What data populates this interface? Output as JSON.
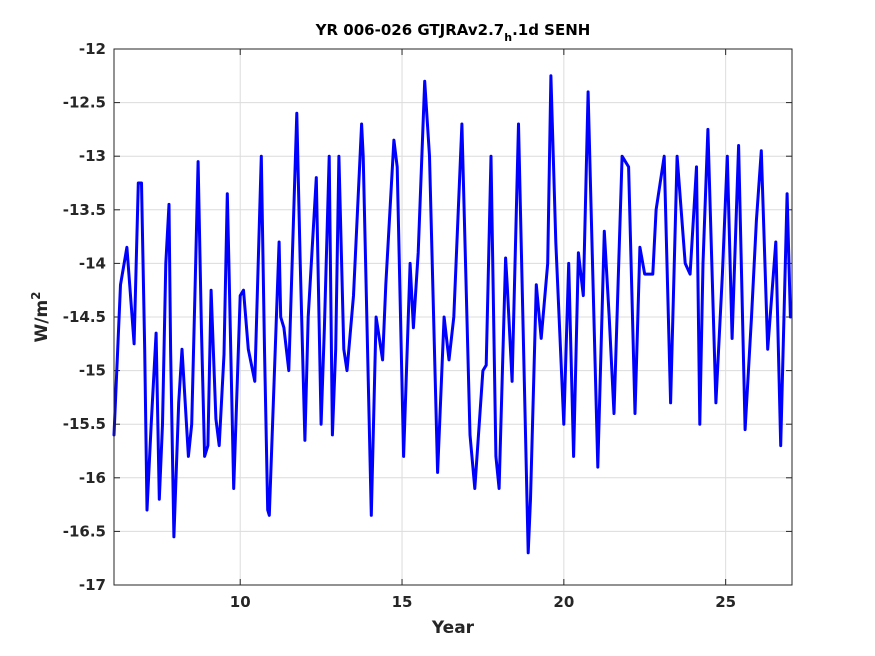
{
  "chart_data": {
    "type": "line",
    "title": {
      "main": "YR 006-026 GTJRAv2.7",
      "subscript": "h",
      "suffix": ".1d SENH"
    },
    "xlabel": "Year",
    "ylabel": {
      "base": "W/m",
      "superscript": "2"
    },
    "xlim": [
      6.1,
      27.05
    ],
    "ylim": [
      -17,
      -12
    ],
    "xticks": [
      10,
      15,
      20,
      25
    ],
    "yticks": [
      -12,
      -12.5,
      -13,
      -13.5,
      -14,
      -14.5,
      -15,
      -15.5,
      -16,
      -16.5,
      -17
    ],
    "xtick_labels": [
      "10",
      "15",
      "20",
      "25"
    ],
    "ytick_labels": [
      "-12",
      "-12.5",
      "-13",
      "-13.5",
      "-14",
      "-14.5",
      "-15",
      "-15.5",
      "-16",
      "-16.5",
      "-17"
    ],
    "grid": true,
    "line_color": "#0000ff",
    "series": [
      {
        "x": [
          6.1,
          6.3,
          6.5,
          6.72,
          6.85,
          6.95,
          7.05,
          7.12,
          7.25,
          7.4,
          7.5,
          7.6,
          7.7,
          7.8,
          7.85,
          7.95,
          8.1,
          8.2,
          8.4,
          8.5,
          8.6,
          8.7,
          8.8,
          8.9,
          9.0,
          9.1,
          9.25,
          9.35,
          9.5,
          9.6,
          9.65,
          9.8,
          10.0,
          10.1,
          10.25,
          10.45,
          10.65,
          10.75,
          10.85,
          10.9,
          11.2,
          11.25,
          11.35,
          11.5,
          11.75,
          11.85,
          12.0,
          12.1,
          12.35,
          12.5,
          12.6,
          12.75,
          12.85,
          12.95,
          13.05,
          13.2,
          13.3,
          13.5,
          13.75,
          13.8,
          14.05,
          14.2,
          14.4,
          14.5,
          14.75,
          14.85,
          15.05,
          15.25,
          15.35,
          15.5,
          15.7,
          15.85,
          16.1,
          16.3,
          16.45,
          16.6,
          16.85,
          17.1,
          17.25,
          17.5,
          17.6,
          17.75,
          17.9,
          18.0,
          18.2,
          18.25,
          18.4,
          18.6,
          18.9,
          18.97,
          19.15,
          19.3,
          19.5,
          19.6,
          19.75,
          20.0,
          20.15,
          20.3,
          20.45,
          20.6,
          20.75,
          20.85,
          21.05,
          21.25,
          21.4,
          21.55,
          21.8,
          22.0,
          22.2,
          22.35,
          22.5,
          22.75,
          22.85,
          23.1,
          23.3,
          23.5,
          23.75,
          23.9,
          24.1,
          24.2,
          24.3,
          24.45,
          24.7,
          24.9,
          25.05,
          25.2,
          25.4,
          25.6,
          25.8,
          25.95,
          26.1,
          26.3,
          26.55,
          26.7,
          26.9,
          27.0
        ],
        "y": [
          -15.6,
          -14.2,
          -13.85,
          -14.75,
          -13.25,
          -13.25,
          -14.8,
          -16.3,
          -15.5,
          -14.65,
          -16.2,
          -15.5,
          -14.0,
          -13.45,
          -14.8,
          -16.55,
          -15.3,
          -14.8,
          -15.8,
          -15.5,
          -14.3,
          -13.05,
          -14.6,
          -15.8,
          -15.7,
          -14.25,
          -15.45,
          -15.7,
          -14.85,
          -13.35,
          -14.0,
          -16.1,
          -14.3,
          -14.25,
          -14.8,
          -15.1,
          -13.0,
          -14.8,
          -16.3,
          -16.35,
          -13.8,
          -14.5,
          -14.6,
          -15.0,
          -12.6,
          -13.95,
          -15.65,
          -14.5,
          -13.2,
          -15.5,
          -14.6,
          -13.0,
          -15.6,
          -14.8,
          -13.0,
          -14.8,
          -15.0,
          -14.3,
          -12.7,
          -13.0,
          -16.35,
          -14.5,
          -14.9,
          -14.2,
          -12.85,
          -13.1,
          -15.8,
          -14.0,
          -14.6,
          -13.9,
          -12.3,
          -13.0,
          -15.95,
          -14.5,
          -14.9,
          -14.5,
          -12.7,
          -15.6,
          -16.1,
          -15.0,
          -14.95,
          -13.0,
          -15.8,
          -16.1,
          -13.95,
          -14.2,
          -15.1,
          -12.7,
          -16.7,
          -16.2,
          -14.2,
          -14.7,
          -14.0,
          -12.25,
          -13.8,
          -15.5,
          -14.0,
          -15.8,
          -13.9,
          -14.3,
          -12.4,
          -13.6,
          -15.9,
          -13.7,
          -14.5,
          -15.4,
          -13.0,
          -13.1,
          -15.4,
          -13.85,
          -14.1,
          -14.1,
          -13.5,
          -13.0,
          -15.3,
          -13.0,
          -14.0,
          -14.1,
          -13.1,
          -15.5,
          -14.0,
          -12.75,
          -15.3,
          -14.1,
          -13.0,
          -14.7,
          -12.9,
          -15.55,
          -14.5,
          -13.6,
          -12.95,
          -14.8,
          -13.8,
          -15.7,
          -13.35,
          -14.5
        ]
      }
    ]
  }
}
